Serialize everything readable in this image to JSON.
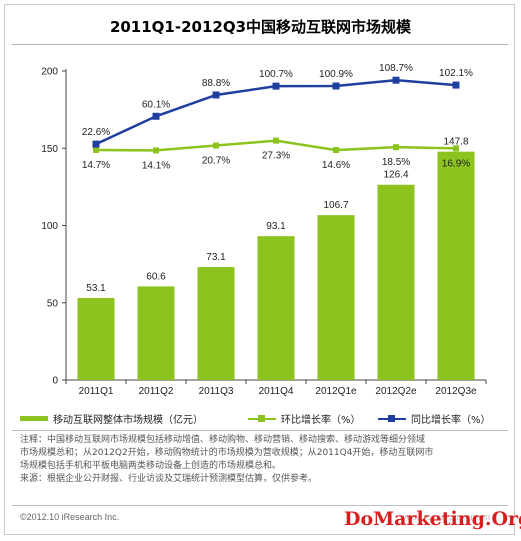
{
  "title": "2011Q1-2012Q3中国移动互联网市场规模",
  "chart_data": {
    "type": "bar",
    "categories": [
      "2011Q1",
      "2011Q2",
      "2011Q3",
      "2011Q4",
      "2012Q1e",
      "2012Q2e",
      "2012Q3e"
    ],
    "ylim": [
      0,
      200
    ],
    "yticks": [
      0,
      50,
      100,
      150,
      200
    ],
    "series": [
      {
        "name": "移动互联网整体市场规模（亿元）",
        "kind": "bar",
        "color": "#8cc31e",
        "values": [
          53.1,
          60.6,
          73.1,
          93.1,
          106.7,
          126.4,
          147.8
        ],
        "labels": [
          "53.1",
          "60.6",
          "73.1",
          "93.1",
          "106.7",
          "126.4",
          "147.8"
        ]
      },
      {
        "name": "环比增长率（%）",
        "kind": "line",
        "color": "#8cc31e",
        "values": [
          14.7,
          14.1,
          20.7,
          27.3,
          14.6,
          18.5,
          16.9
        ],
        "labels": [
          "14.7%",
          "14.1%",
          "20.7%",
          "27.3%",
          "14.6%",
          "18.5%",
          "16.9%"
        ]
      },
      {
        "name": "同比增长率（%）",
        "kind": "line",
        "color": "#1f3fa0",
        "values": [
          22.6,
          60.1,
          88.8,
          100.7,
          100.9,
          108.7,
          102.1
        ],
        "labels": [
          "22.6%",
          "60.1%",
          "88.8%",
          "100.7%",
          "100.9%",
          "108.7%",
          "102.1%"
        ]
      }
    ],
    "legend_position": "bottom",
    "grid": false
  },
  "notes": [
    "注释：中国移动互联网市场规模包括移动增值、移动购物、移动营销、移动搜索、移动游戏等细分领域",
    "市场规模总和；从2012Q2开始，移动购物统计的市场规模为营收规模；从2011Q4开始，移动互联网市",
    "场规模包括手机和平板电脑两类移动设备上创造的市场规模总和。",
    "来源：根据企业公开财报、行业访谈及艾瑞统计预测模型估算，仅供参考。"
  ],
  "copyright": "©2012.10 iResearch Inc.",
  "watermark_url": "www.iresearch.com.cn",
  "watermark": "DoMarketing.Org"
}
